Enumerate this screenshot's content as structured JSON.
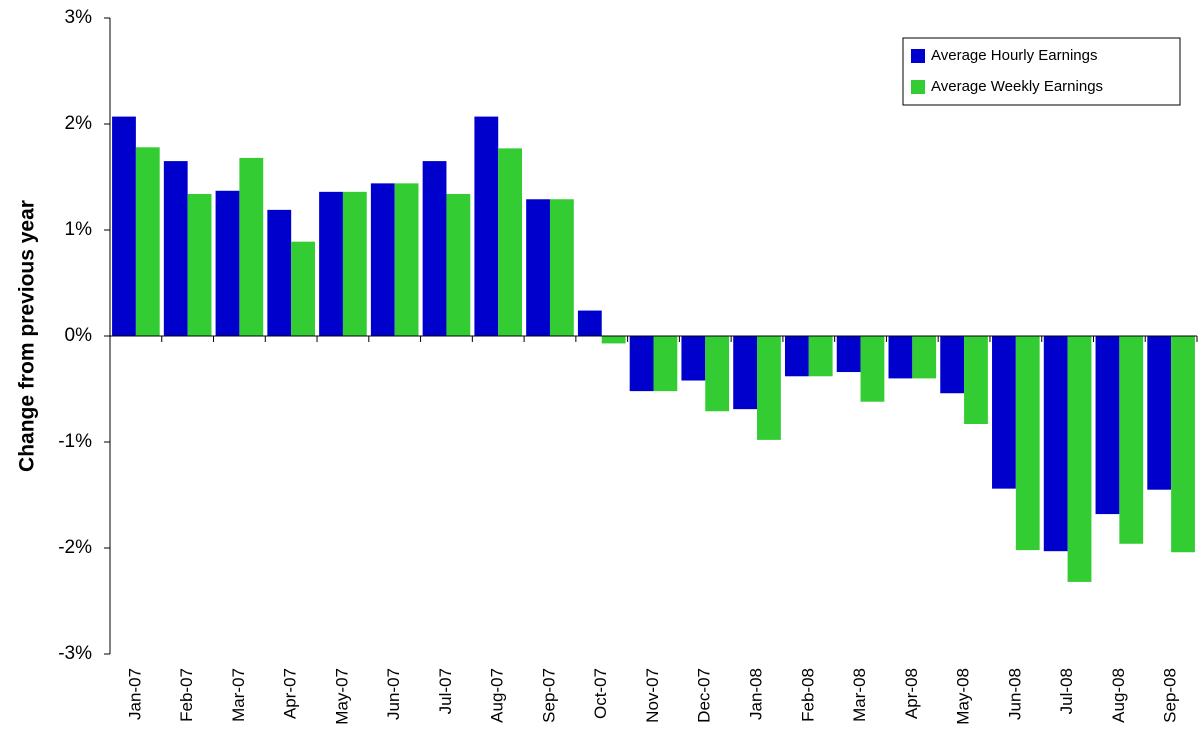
{
  "chart_data": {
    "type": "bar",
    "y_label": "Change from previous year",
    "categories": [
      "Jan-07",
      "Feb-07",
      "Mar-07",
      "Apr-07",
      "May-07",
      "Jun-07",
      "Jul-07",
      "Aug-07",
      "Sep-07",
      "Oct-07",
      "Nov-07",
      "Dec-07",
      "Jan-08",
      "Feb-08",
      "Mar-08",
      "Apr-08",
      "May-08",
      "Jun-08",
      "Jul-08",
      "Aug-08",
      "Sep-08"
    ],
    "series": [
      {
        "name": "Average Hourly Earnings",
        "color": "#0000cc",
        "values": [
          2.07,
          1.65,
          1.37,
          1.19,
          1.36,
          1.44,
          1.65,
          2.07,
          1.29,
          0.24,
          -0.52,
          -0.42,
          -0.69,
          -0.38,
          -0.34,
          -0.4,
          -0.54,
          -1.44,
          -2.03,
          -1.68,
          -1.45
        ]
      },
      {
        "name": "Average Weekly Earnings",
        "color": "#33cc33",
        "values": [
          1.78,
          1.34,
          1.68,
          0.89,
          1.36,
          1.44,
          1.34,
          1.77,
          1.29,
          -0.07,
          -0.52,
          -0.71,
          -0.98,
          -0.38,
          -0.62,
          -0.4,
          -0.83,
          -2.02,
          -2.32,
          -1.96,
          -2.04
        ]
      }
    ],
    "ylim": [
      -3,
      3
    ],
    "yticks": [
      {
        "value": -3,
        "label": "-3%"
      },
      {
        "value": -2,
        "label": "-2%"
      },
      {
        "value": -1,
        "label": "-1%"
      },
      {
        "value": 0,
        "label": "0%"
      },
      {
        "value": 1,
        "label": "1%"
      },
      {
        "value": 2,
        "label": "2%"
      },
      {
        "value": 3,
        "label": "3%"
      }
    ],
    "grid": false,
    "legend": "upper right"
  }
}
